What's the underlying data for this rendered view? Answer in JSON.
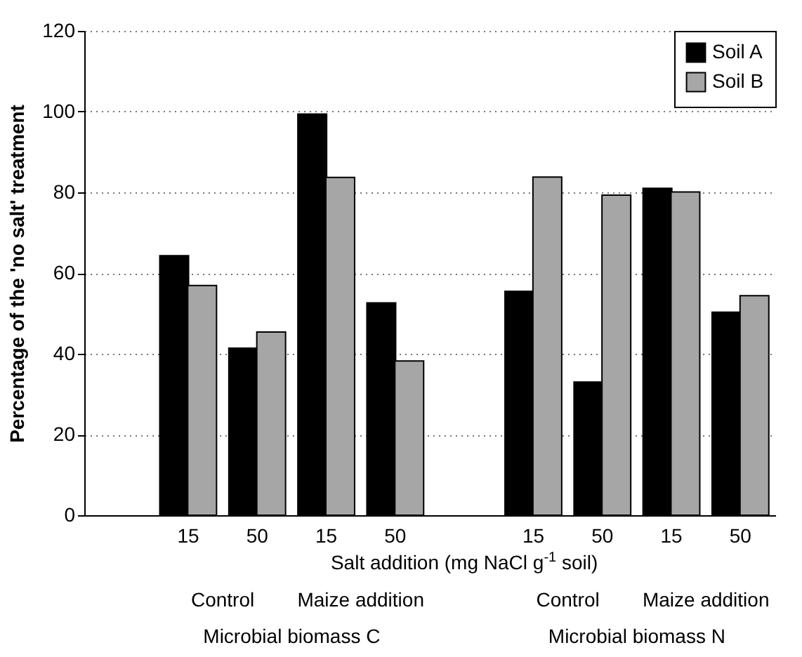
{
  "chart_data": {
    "type": "bar",
    "ylabel": "Percentage of the 'no salt' treatment",
    "xlabel": "Salt addition (mg NaCl g$^{-1}$ soil)",
    "categories": [
      null,
      "15",
      "50",
      "15",
      "50",
      null,
      "15",
      "50",
      "15",
      "50"
    ],
    "series": [
      {
        "name": "Soil A",
        "color": "#000000",
        "values": [
          null,
          64.3,
          41.4,
          99.4,
          52.6,
          null,
          55.5,
          33.0,
          81.0,
          50.3
        ]
      },
      {
        "name": "Soil B",
        "color": "#a6a6a6",
        "values": [
          null,
          56.9,
          45.4,
          83.7,
          38.2,
          null,
          83.8,
          79.3,
          80.1,
          54.4
        ]
      }
    ],
    "ylim": [
      0,
      120
    ],
    "yticks": [
      0,
      20,
      40,
      60,
      80,
      100,
      120
    ],
    "grid": "y",
    "legend": "top right",
    "annotations": [
      "Control",
      "Maize addition",
      "Control",
      "Maize addition",
      "Microbial biomass C",
      "Microbial biomass N"
    ]
  }
}
